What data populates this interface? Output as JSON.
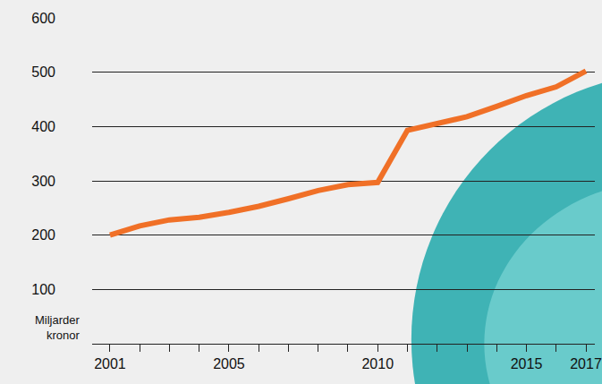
{
  "chart_data": {
    "type": "line",
    "ylabel": "Miljarder kronor",
    "x": [
      2001,
      2002,
      2003,
      2004,
      2005,
      2006,
      2007,
      2008,
      2009,
      2010,
      2011,
      2012,
      2013,
      2014,
      2015,
      2016,
      2017
    ],
    "values": [
      200,
      217,
      228,
      233,
      242,
      253,
      267,
      282,
      293,
      297,
      393,
      405,
      418,
      437,
      457,
      473,
      502
    ],
    "color": "#f07027",
    "xlim": [
      2000.4,
      2017.3
    ],
    "xticks": [
      2001,
      2005,
      2010,
      2015,
      2017
    ],
    "ylim": [
      0,
      600
    ],
    "yticks": [
      100,
      200,
      300,
      400,
      500,
      600
    ],
    "grid": true
  }
}
